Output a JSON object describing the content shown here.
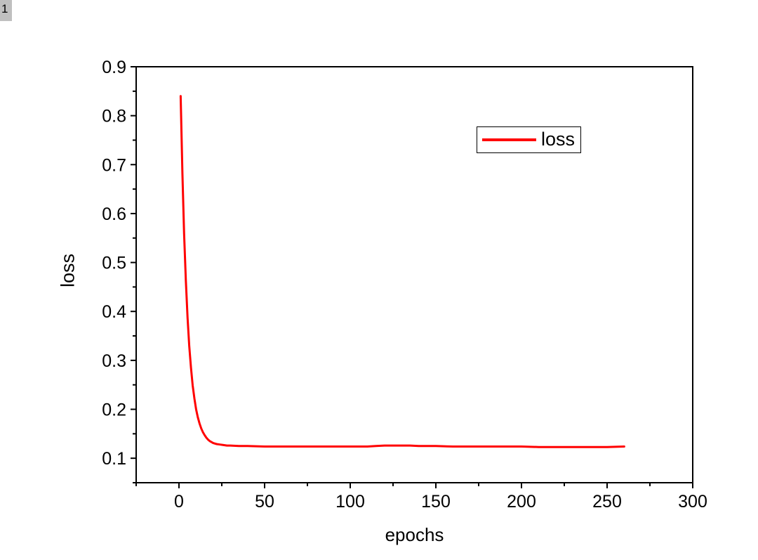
{
  "page_indicator": {
    "label": "1",
    "background": "#c0c0c0"
  },
  "chart_data": {
    "type": "line",
    "title": "",
    "xlabel": "epochs",
    "ylabel": "loss",
    "xlim": [
      -25,
      300
    ],
    "ylim": [
      0.05,
      0.9
    ],
    "grid": false,
    "axis_color": "#000000",
    "legend": {
      "position": "upper-right-inside",
      "entries": [
        "loss"
      ]
    },
    "x_major_ticks": [
      0,
      50,
      100,
      150,
      200,
      250,
      300
    ],
    "x_tick_labels": [
      "0",
      "50",
      "100",
      "150",
      "200",
      "250",
      "300"
    ],
    "x_minor_ticks": [
      -25,
      25,
      75,
      125,
      175,
      225,
      275
    ],
    "y_major_ticks": [
      0.1,
      0.2,
      0.3,
      0.4,
      0.5,
      0.6,
      0.7,
      0.8,
      0.9
    ],
    "y_tick_labels": [
      "0.1",
      "0.2",
      "0.3",
      "0.4",
      "0.5",
      "0.6",
      "0.7",
      "0.8",
      "0.9"
    ],
    "y_minor_ticks": [
      0.05,
      0.15,
      0.25,
      0.35,
      0.45,
      0.55,
      0.65,
      0.75,
      0.85
    ],
    "series": [
      {
        "name": "loss",
        "color": "#ff0000",
        "x": [
          1,
          2,
          3,
          4,
          5,
          6,
          7,
          8,
          9,
          10,
          11,
          12,
          13,
          14,
          15,
          16,
          17,
          18,
          19,
          20,
          22,
          24,
          26,
          28,
          30,
          35,
          40,
          50,
          60,
          70,
          80,
          90,
          100,
          110,
          115,
          120,
          125,
          130,
          135,
          140,
          150,
          160,
          170,
          180,
          190,
          200,
          210,
          220,
          230,
          240,
          250,
          260
        ],
        "y": [
          0.84,
          0.682,
          0.559,
          0.463,
          0.388,
          0.33,
          0.285,
          0.249,
          0.222,
          0.2,
          0.184,
          0.171,
          0.161,
          0.153,
          0.147,
          0.142,
          0.138,
          0.135,
          0.133,
          0.131,
          0.129,
          0.128,
          0.127,
          0.126,
          0.126,
          0.125,
          0.125,
          0.124,
          0.124,
          0.124,
          0.124,
          0.124,
          0.124,
          0.124,
          0.125,
          0.126,
          0.126,
          0.126,
          0.126,
          0.125,
          0.125,
          0.124,
          0.124,
          0.124,
          0.124,
          0.124,
          0.123,
          0.123,
          0.123,
          0.123,
          0.123,
          0.124
        ]
      }
    ]
  }
}
